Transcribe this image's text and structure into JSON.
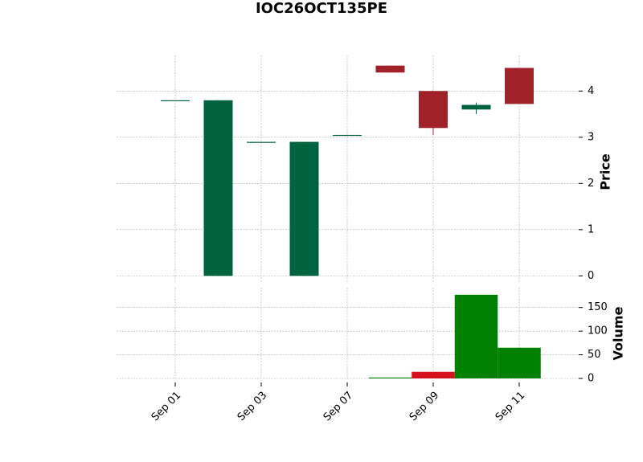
{
  "chart_data": {
    "type": "candlestick",
    "title": "IOC26OCT135PE",
    "categories": [
      "Sep 01",
      null,
      "Sep 03",
      null,
      "Sep 07",
      null,
      "Sep 09",
      null,
      "Sep 11"
    ],
    "open": [
      3.8,
      0,
      2.9,
      0,
      3.05,
      4.55,
      4.0,
      3.6,
      4.5
    ],
    "high": [
      3.8,
      3.8,
      2.9,
      2.9,
      3.05,
      4.55,
      4.0,
      3.75,
      4.5
    ],
    "low": [
      3.8,
      0,
      2.9,
      0,
      3.05,
      4.4,
      3.05,
      3.5,
      3.72
    ],
    "close": [
      3.8,
      3.8,
      2.9,
      2.9,
      3.05,
      4.4,
      3.2,
      3.7,
      3.72
    ],
    "volume": [
      0,
      0,
      0,
      0,
      0,
      2,
      14,
      177,
      65
    ],
    "up_color": "#006340",
    "down_color": "#a02128",
    "volume_up_color": "#007f00",
    "volume_down_color": "#d3121e",
    "ylabel": "Price",
    "ylim": [
      -0.15,
      4.77
    ],
    "yticks": [
      0,
      1,
      2,
      3,
      4
    ],
    "y2label": "Volume",
    "y2lim": [
      0,
      192
    ],
    "y2ticks": [
      0,
      50,
      100,
      150
    ],
    "grid": true
  }
}
